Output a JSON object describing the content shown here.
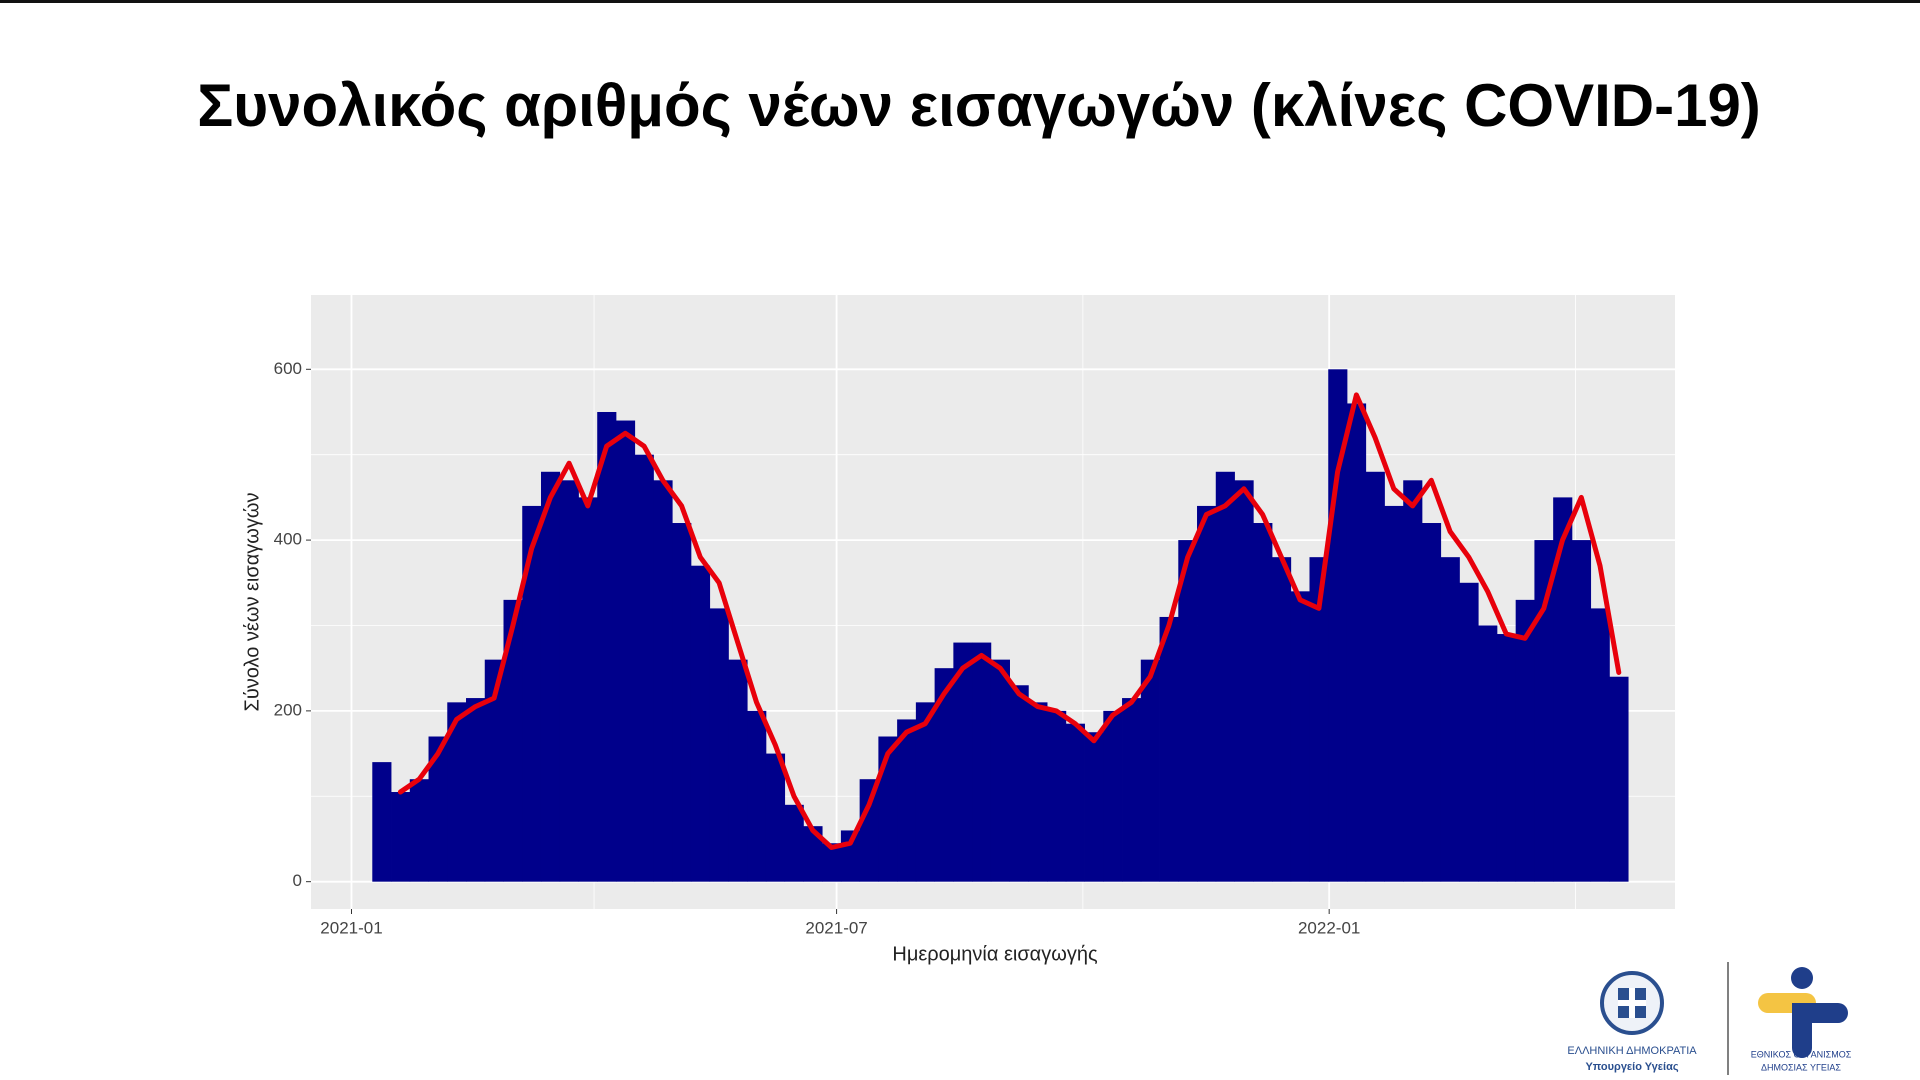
{
  "chart_data": {
    "type": "bar",
    "title": "Συνολικός αριθμός νέων εισαγωγών (κλίνες COVID-19)",
    "xlabel": "Ημερομηνία εισαγωγής",
    "ylabel": "Σύνολο νέων εισαγωγών",
    "categories": [
      null,
      null,
      null,
      null,
      null,
      null,
      null,
      null,
      null,
      null,
      null,
      null,
      null,
      null,
      null,
      null,
      null,
      null,
      null,
      null,
      null,
      null,
      null,
      null,
      null,
      null,
      null,
      null,
      null,
      null,
      null,
      null,
      null,
      null,
      null,
      null,
      null,
      null,
      null,
      null,
      null,
      null,
      null,
      null,
      null,
      null,
      null,
      null,
      null,
      null,
      null,
      null,
      null,
      null,
      null,
      null,
      null,
      null,
      null,
      null,
      null,
      null,
      null,
      null,
      null,
      null,
      null
    ],
    "series": [
      {
        "type": "bar",
        "color": "#00008b",
        "values": [
          140,
          105,
          120,
          170,
          210,
          215,
          260,
          330,
          440,
          480,
          470,
          450,
          550,
          540,
          500,
          470,
          420,
          370,
          320,
          260,
          200,
          150,
          90,
          65,
          45,
          60,
          120,
          170,
          190,
          210,
          250,
          280,
          280,
          260,
          230,
          210,
          200,
          185,
          175,
          200,
          215,
          260,
          310,
          400,
          440,
          480,
          470,
          420,
          380,
          340,
          380,
          600,
          560,
          480,
          440,
          470,
          420,
          380,
          350,
          300,
          290,
          330,
          400,
          450,
          400,
          320,
          240
        ]
      },
      {
        "type": "line",
        "color": "#e8000b",
        "values": [
          null,
          105,
          120,
          150,
          190,
          205,
          215,
          300,
          390,
          450,
          490,
          440,
          510,
          525,
          510,
          470,
          440,
          380,
          350,
          280,
          210,
          160,
          100,
          60,
          40,
          45,
          90,
          150,
          175,
          185,
          220,
          250,
          265,
          250,
          220,
          205,
          200,
          185,
          165,
          195,
          210,
          240,
          300,
          380,
          430,
          440,
          460,
          430,
          380,
          330,
          320,
          480,
          570,
          520,
          460,
          440,
          470,
          410,
          380,
          340,
          290,
          285,
          320,
          400,
          450,
          370,
          245
        ]
      }
    ],
    "xlim": [
      -3.77,
      69.0
    ],
    "xticks": [
      {
        "value": -1.61,
        "label": "2021-01"
      },
      {
        "value": 24.27,
        "label": "2021-07"
      },
      {
        "value": 50.55,
        "label": "2022-01"
      }
    ],
    "ylim": [
      -32,
      687
    ],
    "yticks": [
      0,
      200,
      400,
      600
    ],
    "grid": true
  },
  "logos": [
    "ΕΛΛΗΝΙΚΗ ΔΗΜΟΚΡΑΤΙΑ",
    "Υπουργείο Υγείας",
    "ΕΘΝΙΚΟΣ ΟΡΓΑΝΙΣΜΟΣ",
    "ΔΗΜΟΣΙΑΣ ΥΓΕΙΑΣ"
  ]
}
